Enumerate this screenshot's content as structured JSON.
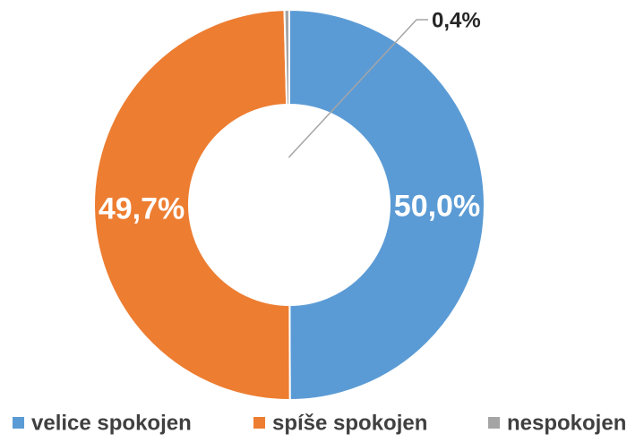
{
  "chart_data": {
    "type": "donut",
    "categories": [
      "velice spokojen",
      "spíše spokojen",
      "nespokojen"
    ],
    "values": [
      50.0,
      49.7,
      0.4
    ],
    "value_labels": [
      "50,0%",
      "49,7%",
      "0,4%"
    ],
    "colors": [
      "#5b9bd5",
      "#ed7d31",
      "#a5a5a5"
    ],
    "legend": "bottom"
  }
}
